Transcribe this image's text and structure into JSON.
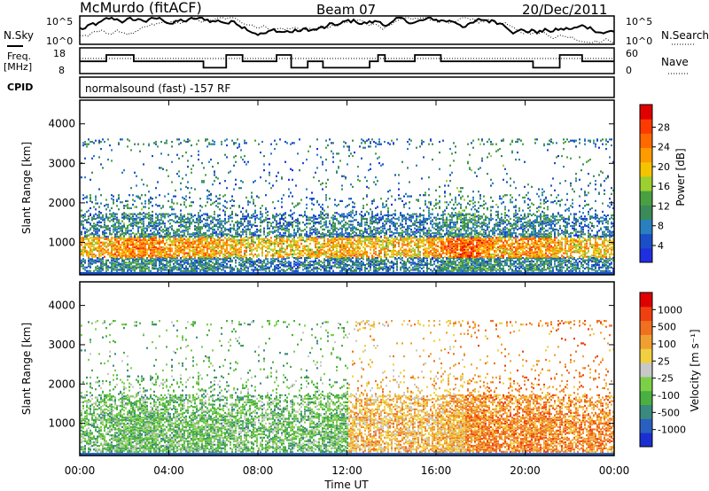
{
  "header": {
    "station": "McMurdo (fitACF)",
    "beam": "Beam 07",
    "date": "20/Dec/2011"
  },
  "chart_data": [
    {
      "type": "line",
      "panel": "noise",
      "left_label": "N.Sky",
      "right_label": "N.Search",
      "left_ticks": [
        "10^5",
        "10^0"
      ],
      "right_ticks": [
        "10^5",
        "10^0"
      ]
    },
    {
      "type": "line",
      "panel": "frequency",
      "left_label_line1": "Freq.",
      "left_label_line2": "[MHz]",
      "left_ticks": [
        18,
        8
      ],
      "right_label": "Nave",
      "right_ticks": [
        60,
        0
      ]
    },
    {
      "type": "table",
      "panel": "cpid",
      "label": "CPID",
      "text": "normalsound (fast) -157 RF"
    },
    {
      "type": "heatmap",
      "panel": "power",
      "ylabel": "Slant Range [km]",
      "y_ticks": [
        1000,
        2000,
        3000,
        4000
      ],
      "ylim": [
        180,
        4600
      ],
      "colorbar": {
        "label": "Power [dB]",
        "ticks": [
          4,
          8,
          12,
          16,
          20,
          24,
          28
        ],
        "colors": [
          "#1f2fe0",
          "#1a4fc8",
          "#2a7fbf",
          "#3a8a5a",
          "#4aa040",
          "#9ccf30",
          "#f5c400",
          "#ff9a00",
          "#ff6a00",
          "#ff3a00",
          "#e00000"
        ]
      }
    },
    {
      "type": "heatmap",
      "panel": "velocity",
      "ylabel": "Slant Range [km]",
      "y_ticks": [
        1000,
        2000,
        3000,
        4000
      ],
      "ylim": [
        180,
        4600
      ],
      "colorbar": {
        "label": "Velocity [m s⁻¹]",
        "ticks": [
          1000,
          500,
          100,
          25,
          -25,
          -100,
          -500,
          -1000
        ],
        "colors": [
          "#1a2fd0",
          "#2a5fc0",
          "#3a8a80",
          "#4ab040",
          "#7cd048",
          "#c8c8c8",
          "#f0d040",
          "#f0a030",
          "#f07020",
          "#f04010",
          "#e00000"
        ]
      }
    }
  ],
  "xaxis": {
    "label": "Time UT",
    "ticks": [
      "00:00",
      "04:00",
      "08:00",
      "12:00",
      "16:00",
      "20:00",
      "00:00"
    ]
  }
}
